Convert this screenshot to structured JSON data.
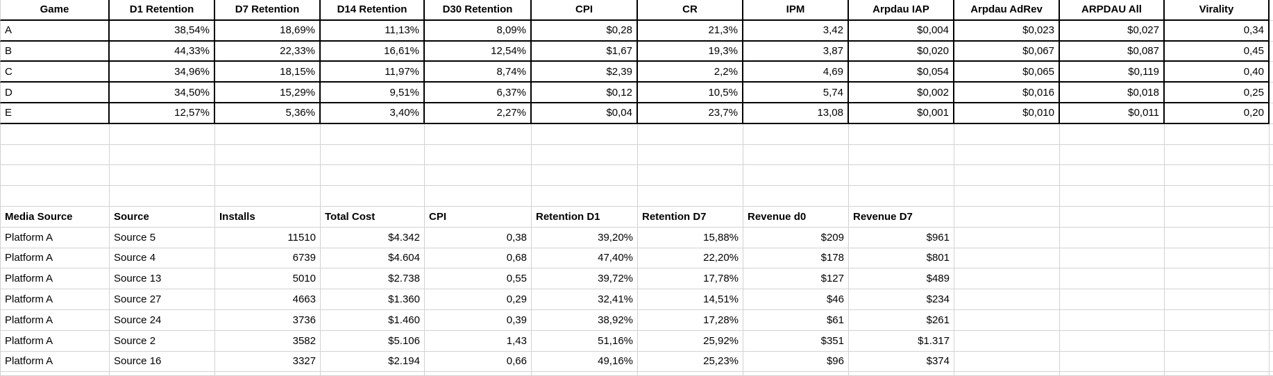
{
  "sheet": {
    "games_table": {
      "headers": [
        "Game",
        "D1 Retention",
        "D7 Retention",
        "D14 Retention",
        "D30 Retention",
        "CPI",
        "CR",
        "IPM",
        "Arpdau IAP",
        "Arpdau AdRev",
        "ARPDAU All",
        "Virality"
      ],
      "rows": [
        [
          "A",
          "38,54%",
          "18,69%",
          "11,13%",
          "8,09%",
          "$0,28",
          "21,3%",
          "3,42",
          "$0,004",
          "$0,023",
          "$0,027",
          "0,34"
        ],
        [
          "B",
          "44,33%",
          "22,33%",
          "16,61%",
          "12,54%",
          "$1,67",
          "19,3%",
          "3,87",
          "$0,020",
          "$0,067",
          "$0,087",
          "0,45"
        ],
        [
          "C",
          "34,96%",
          "18,15%",
          "11,97%",
          "8,74%",
          "$2,39",
          "2,2%",
          "4,69",
          "$0,054",
          "$0,065",
          "$0,119",
          "0,40"
        ],
        [
          "D",
          "34,50%",
          "15,29%",
          "9,51%",
          "6,37%",
          "$0,12",
          "10,5%",
          "5,74",
          "$0,002",
          "$0,016",
          "$0,018",
          "0,25"
        ],
        [
          "E",
          "12,57%",
          "5,36%",
          "3,40%",
          "2,27%",
          "$0,04",
          "23,7%",
          "13,08",
          "$0,001",
          "$0,010",
          "$0,011",
          "0,20"
        ]
      ]
    },
    "sources_table": {
      "headers": [
        "Media Source",
        "Source",
        "Installs",
        "Total Cost",
        "CPI",
        "Retention D1",
        "Retention D7",
        "Revenue d0",
        "Revenue D7"
      ],
      "rows": [
        [
          "Platform A",
          "Source 5",
          "11510",
          "$4.342",
          "0,38",
          "39,20%",
          "15,88%",
          "$209",
          "$961"
        ],
        [
          "Platform A",
          "Source 4",
          "6739",
          "$4.604",
          "0,68",
          "47,40%",
          "22,20%",
          "$178",
          "$801"
        ],
        [
          "Platform A",
          "Source 13",
          "5010",
          "$2.738",
          "0,55",
          "39,72%",
          "17,78%",
          "$127",
          "$489"
        ],
        [
          "Platform A",
          "Source 27",
          "4663",
          "$1.360",
          "0,29",
          "32,41%",
          "14,51%",
          "$46",
          "$234"
        ],
        [
          "Platform A",
          "Source 24",
          "3736",
          "$1.460",
          "0,39",
          "38,92%",
          "17,28%",
          "$61",
          "$261"
        ],
        [
          "Platform A",
          "Source 2",
          "3582",
          "$5.106",
          "1,43",
          "51,16%",
          "25,92%",
          "$351",
          "$1.317"
        ],
        [
          "Platform A",
          "Source 16",
          "3327",
          "$2.194",
          "0,66",
          "49,16%",
          "25,23%",
          "$96",
          "$374"
        ]
      ]
    },
    "colors": {
      "grid_line": "#d2d2d2",
      "table_border": "#000000",
      "text": "#000000",
      "background": "#ffffff"
    }
  }
}
